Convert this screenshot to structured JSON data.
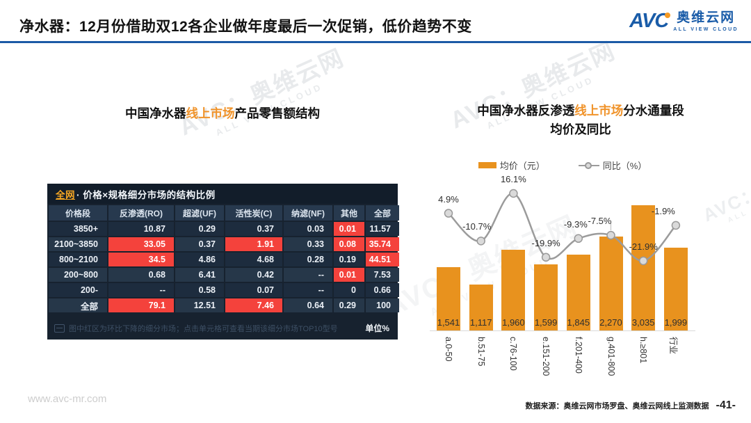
{
  "watermark": {
    "cn": "AVC：奥维云网",
    "en": "ALL VIEW CLOUD"
  },
  "header": {
    "title": "净水器：12月份借助双12各企业做年度最后一次促销，低价趋势不变",
    "logo": {
      "abbr": "AVC",
      "cn": "奥维云网",
      "en": "ALL VIEW CLOUD"
    }
  },
  "left": {
    "title_parts": {
      "p1": "中国净水器",
      "p2": "线上市场",
      "p3": "产品零售额结构"
    },
    "table": {
      "caption_highlight": "全网",
      "caption_rest": " · 价格×规格细分市场的结构比例",
      "footnote": "图中红区为环比下降的细分市场；点击单元格可查看当期该细分市场TOP10型号",
      "unit": "单位%"
    }
  },
  "right": {
    "title_parts": {
      "p1": "中国净水器反渗透",
      "p2": "线上市场",
      "p3": "分水通量段"
    },
    "title_line2": "均价及同比"
  },
  "chart_data": [
    {
      "type": "table",
      "title": "全网 · 价格×规格细分市场的结构比例",
      "unit": "%",
      "red_meaning": "环比下降的细分市场",
      "columns": [
        "价格段",
        "反渗透(RO)",
        "超滤(UF)",
        "活性炭(C)",
        "纳滤(NF)",
        "其他",
        "全部"
      ],
      "rows": [
        {
          "label": "3850+",
          "values": [
            "10.87",
            "0.29",
            "0.37",
            "0.03",
            "0.01",
            "11.57"
          ],
          "red": [
            4
          ]
        },
        {
          "label": "2100~3850",
          "values": [
            "33.05",
            "0.37",
            "1.91",
            "0.33",
            "0.08",
            "35.74"
          ],
          "red": [
            0,
            2,
            4,
            5
          ]
        },
        {
          "label": "800~2100",
          "values": [
            "34.5",
            "4.86",
            "4.68",
            "0.28",
            "0.19",
            "44.51"
          ],
          "red": [
            0,
            5
          ]
        },
        {
          "label": "200~800",
          "values": [
            "0.68",
            "6.41",
            "0.42",
            "--",
            "0.01",
            "7.53"
          ],
          "red": [
            4
          ]
        },
        {
          "label": "200-",
          "values": [
            "--",
            "0.58",
            "0.07",
            "--",
            "0",
            "0.66"
          ],
          "red": []
        },
        {
          "label": "全部",
          "values": [
            "79.1",
            "12.51",
            "7.46",
            "0.64",
            "0.29",
            "100"
          ],
          "red": [
            0,
            2
          ]
        }
      ]
    },
    {
      "type": "bar",
      "title": "中国净水器反渗透线上市场分水通量段均价及同比",
      "categories": [
        "a.0-50",
        "b.51-75",
        "c.76-100",
        "e.151-200",
        "f.201-400",
        "g.401-800",
        "h.≥801",
        "行业"
      ],
      "series": [
        {
          "name": "均价（元）",
          "kind": "bar",
          "color": "#E8921E",
          "values": [
            1541,
            1117,
            1960,
            1599,
            1845,
            2270,
            3035,
            1999
          ],
          "labels": [
            "1,541",
            "1,117",
            "1,960",
            "1,599",
            "1,845",
            "2,270",
            "3,035",
            "1,999"
          ]
        },
        {
          "name": "同比（%）",
          "kind": "line",
          "color": "#9B9B9B",
          "values": [
            4.9,
            -10.7,
            16.1,
            -19.9,
            -9.3,
            -7.5,
            -21.9,
            -1.9
          ],
          "labels": [
            "4.9%",
            "-10.7%",
            "16.1%",
            "-19.9%",
            "-9.3%",
            "-7.5%",
            "-21.9%",
            "-1.9%"
          ]
        }
      ],
      "layout": {
        "legend": "top",
        "gridlines": false,
        "bar_value_labels": "inside-bottom",
        "x_label_rotation": 90
      }
    }
  ],
  "footer": {
    "site": "www.avc-mr.com",
    "source": "数据来源：奥维云网市场罗盘、奥维云网线上监测数据",
    "page": "-41-"
  },
  "colors": {
    "accent_orange": "#E8921E",
    "alert_red": "#F4423C",
    "table_navy": "#1E2B3C",
    "brand_blue": "#1B5AA6",
    "line_gray": "#9B9B9B"
  }
}
